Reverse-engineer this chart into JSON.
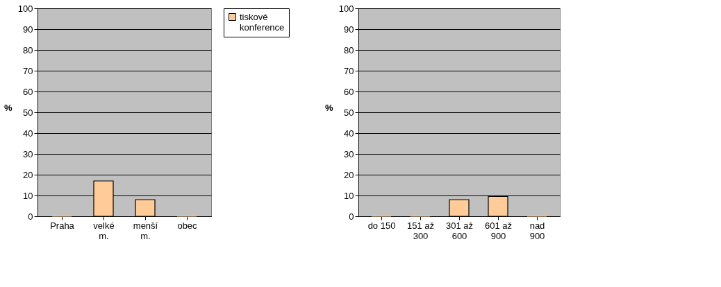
{
  "chart_data": [
    {
      "type": "bar",
      "ylabel": "%",
      "categories": [
        "Praha",
        "velké m.",
        "menší m.",
        "obec"
      ],
      "series": [
        {
          "name": "tiskové konference",
          "color": "#ffcc99",
          "values": [
            0,
            17,
            8,
            0
          ]
        }
      ],
      "ylim": [
        0,
        100
      ],
      "yticks": [
        0,
        10,
        20,
        30,
        40,
        50,
        60,
        70,
        80,
        90,
        100
      ],
      "grid": "y",
      "legend": "right"
    },
    {
      "type": "bar",
      "ylabel": "%",
      "categories": [
        "do 150",
        "151 až 300",
        "301 až 600",
        "601 až 900",
        "nad 900"
      ],
      "series": [
        {
          "color": "#ffcc99",
          "values": [
            0,
            0,
            8,
            9.5,
            0
          ]
        }
      ],
      "ylim": [
        0,
        100
      ],
      "yticks": [
        0,
        10,
        20,
        30,
        40,
        50,
        60,
        70,
        80,
        90,
        100
      ],
      "grid": "y"
    }
  ]
}
